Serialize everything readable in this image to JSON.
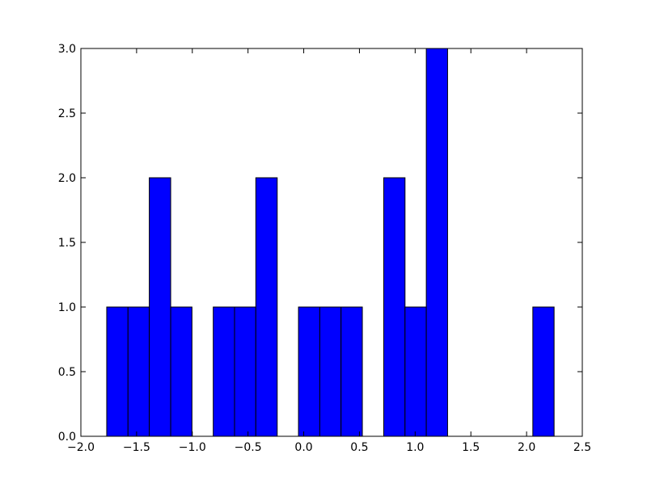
{
  "chart_data": {
    "type": "histogram",
    "bins": [
      -1.768,
      -1.577,
      -1.386,
      -1.194,
      -1.003,
      -0.812,
      -0.621,
      -0.43,
      -0.238,
      -0.047,
      0.144,
      0.335,
      0.526,
      0.718,
      0.909,
      1.1,
      1.291,
      1.482,
      1.674,
      1.865,
      2.056,
      2.247
    ],
    "counts": [
      1,
      1,
      2,
      1,
      0,
      1,
      1,
      2,
      0,
      1,
      1,
      1,
      0,
      2,
      1,
      3,
      0,
      0,
      0,
      0,
      1
    ],
    "color": "#0000ff",
    "xlim": [
      -2,
      2.5
    ],
    "xticks": [
      {
        "value": -2,
        "label": "−2.0"
      },
      {
        "value": -1.5,
        "label": "−1.5"
      },
      {
        "value": -1,
        "label": "−1.0"
      },
      {
        "value": -0.5,
        "label": "−0.5"
      },
      {
        "value": 0,
        "label": "0.0"
      },
      0.5,
      {
        "value": 1,
        "label": "1.0"
      },
      1.5,
      {
        "value": 2,
        "label": "2.0"
      },
      2.5
    ],
    "ylim": [
      0,
      3
    ],
    "yticks": [
      {
        "value": 0,
        "label": "0.0"
      },
      0.5,
      {
        "value": 1,
        "label": "1.0"
      },
      1.5,
      {
        "value": 2,
        "label": "2.0"
      },
      2.5,
      {
        "value": 3,
        "label": "3.0"
      }
    ]
  }
}
